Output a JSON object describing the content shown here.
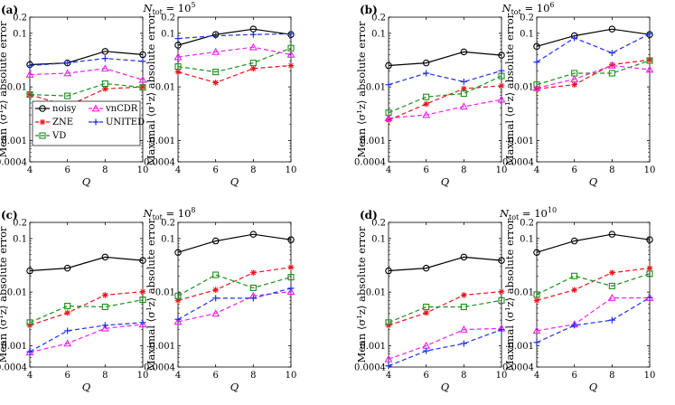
{
  "chart_data": {
    "type": "line",
    "x_label": "Q",
    "x_values": [
      4,
      6,
      8,
      10
    ],
    "xlim": [
      4,
      10
    ],
    "x_ticks": [
      "4",
      "6",
      "8",
      "10"
    ],
    "ylim": [
      0.0004,
      0.2
    ],
    "y_ticks": [
      "0.0004",
      "0.001",
      "0.01",
      "0.1",
      "0.2"
    ],
    "y_scale": "log",
    "y_labels": {
      "mean": "Mean ⟨σ¹z⟩ absolute error",
      "maximal": "Maximal ⟨σ¹z⟩ absolute error"
    },
    "legend": {
      "placement": "lower-left of panel (a) left plot",
      "entries": [
        {
          "key": "noisy",
          "label": "noisy"
        },
        {
          "key": "vncdr",
          "label": "vnCDR"
        },
        {
          "key": "zne",
          "label": "ZNE"
        },
        {
          "key": "united",
          "label": "UNITED"
        },
        {
          "key": "vd",
          "label": "VD"
        }
      ]
    },
    "series_styles": {
      "noisy": {
        "color": "#000000",
        "marker": "circle",
        "dash": "solid"
      },
      "zne": {
        "color": "#e8141c",
        "marker": "star",
        "dash": "dashed"
      },
      "vd": {
        "color": "#1b8f1b",
        "marker": "square",
        "dash": "dashed"
      },
      "vncdr": {
        "color": "#ee22ee",
        "marker": "triangle",
        "dash": "dashed"
      },
      "united": {
        "color": "#1f2fe6",
        "marker": "plus",
        "dash": "dashed"
      }
    },
    "panels": [
      {
        "label": "(a)",
        "title": "N_tot = 10^5",
        "title_base": "N",
        "title_sub": "tot",
        "title_eq": " = 10",
        "title_exp": "5",
        "mean": {
          "noisy": [
            0.026,
            0.028,
            0.046,
            0.04
          ],
          "zne": [
            0.0072,
            0.0044,
            0.0092,
            0.01
          ],
          "vd": [
            0.0072,
            0.0068,
            0.0115,
            0.0098
          ],
          "vncdr": [
            0.017,
            0.018,
            0.022,
            0.0135
          ],
          "united": [
            0.025,
            0.028,
            0.034,
            0.03
          ]
        },
        "maximal": {
          "noisy": [
            0.06,
            0.095,
            0.12,
            0.095
          ],
          "zne": [
            0.019,
            0.012,
            0.022,
            0.025
          ],
          "vd": [
            0.024,
            0.019,
            0.028,
            0.053
          ],
          "vncdr": [
            0.036,
            0.045,
            0.055,
            0.04
          ],
          "united": [
            0.08,
            0.09,
            0.095,
            0.098
          ]
        }
      },
      {
        "label": "(b)",
        "title": "N_tot = 10^6",
        "title_base": "N",
        "title_sub": "tot",
        "title_eq": " = 10",
        "title_exp": "6",
        "mean": {
          "noisy": [
            0.025,
            0.028,
            0.045,
            0.039
          ],
          "zne": [
            0.0024,
            0.0048,
            0.0093,
            0.0105
          ],
          "vd": [
            0.0033,
            0.0065,
            0.0075,
            0.016
          ],
          "vncdr": [
            0.0026,
            0.003,
            0.0043,
            0.0058
          ],
          "united": [
            0.011,
            0.018,
            0.0125,
            0.02
          ]
        },
        "maximal": {
          "noisy": [
            0.057,
            0.09,
            0.12,
            0.095
          ],
          "zne": [
            0.0092,
            0.011,
            0.026,
            0.032
          ],
          "vd": [
            0.011,
            0.018,
            0.018,
            0.031
          ],
          "vncdr": [
            0.0095,
            0.014,
            0.025,
            0.021
          ],
          "united": [
            0.029,
            0.082,
            0.043,
            0.098
          ]
        }
      },
      {
        "label": "(c)",
        "title": "N_tot = 10^8",
        "title_base": "N",
        "title_sub": "tot",
        "title_eq": " = 10",
        "title_exp": "8",
        "mean": {
          "noisy": [
            0.025,
            0.028,
            0.045,
            0.039
          ],
          "zne": [
            0.0024,
            0.0041,
            0.0088,
            0.0102
          ],
          "vd": [
            0.0027,
            0.0055,
            0.0053,
            0.0072
          ],
          "vncdr": [
            0.00075,
            0.0011,
            0.0021,
            0.0025
          ],
          "united": [
            0.00077,
            0.0019,
            0.0024,
            0.0027
          ]
        },
        "maximal": {
          "noisy": [
            0.055,
            0.09,
            0.12,
            0.095
          ],
          "zne": [
            0.007,
            0.011,
            0.023,
            0.029
          ],
          "vd": [
            0.0085,
            0.021,
            0.012,
            0.019
          ],
          "vncdr": [
            0.0028,
            0.004,
            0.0085,
            0.0102
          ],
          "united": [
            0.0031,
            0.0077,
            0.0077,
            0.0118
          ]
        }
      },
      {
        "label": "(d)",
        "title": "N_tot = 10^10",
        "title_base": "N",
        "title_sub": "tot",
        "title_eq": " = 10",
        "title_exp": "10",
        "mean": {
          "noisy": [
            0.025,
            0.028,
            0.045,
            0.039
          ],
          "zne": [
            0.0024,
            0.0041,
            0.0088,
            0.0102
          ],
          "vd": [
            0.0027,
            0.0053,
            0.0053,
            0.007
          ],
          "vncdr": [
            0.00056,
            0.001,
            0.002,
            0.0021
          ],
          "united": [
            0.00042,
            0.0008,
            0.0011,
            0.002
          ]
        },
        "maximal": {
          "noisy": [
            0.055,
            0.09,
            0.12,
            0.095
          ],
          "zne": [
            0.007,
            0.011,
            0.023,
            0.028
          ],
          "vd": [
            0.009,
            0.02,
            0.013,
            0.022
          ],
          "vncdr": [
            0.0019,
            0.0025,
            0.0078,
            0.0078
          ],
          "united": [
            0.00115,
            0.0024,
            0.003,
            0.0079
          ]
        }
      }
    ]
  }
}
